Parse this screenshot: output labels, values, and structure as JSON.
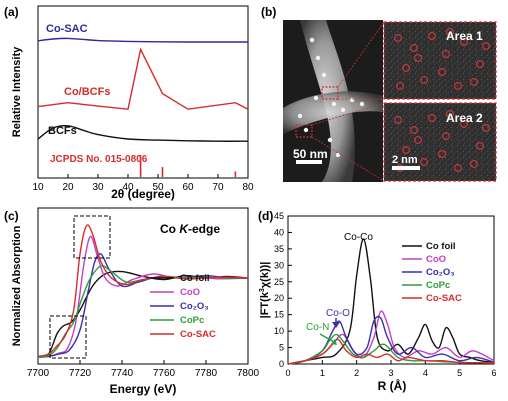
{
  "panel_a": {
    "label": "(a)",
    "ylabel": "Relative Intensity",
    "xlabel": "2θ (degree)",
    "xticks": [
      "10",
      "20",
      "30",
      "40",
      "50",
      "60",
      "70",
      "80"
    ],
    "traces": [
      {
        "name": "Co-SAC",
        "color": "#2b2b9a"
      },
      {
        "name": "Co/BCFs",
        "color": "#d62c2c"
      },
      {
        "name": "BCFs",
        "color": "#111111"
      }
    ],
    "reference": {
      "name": "JCPDS No. 015-0806",
      "color": "#d62c2c",
      "peaks": [
        44.2,
        51.5,
        75.8
      ],
      "heights": [
        1.0,
        0.45,
        0.25
      ]
    }
  },
  "panel_b": {
    "label": "(b)",
    "scalebar_main": "50 nm",
    "scalebar_inset": "2 nm",
    "area1": "Area 1",
    "area2": "Area 2"
  },
  "panel_c": {
    "label": "(c)",
    "title": "Co K-edge",
    "title_plain": "Co ",
    "title_italic": "K",
    "title_suffix": "-edge",
    "ylabel": "Normalized Absorption",
    "xlabel": "Energy (eV)",
    "xticks": [
      "7700",
      "7720",
      "7740",
      "7760",
      "7780",
      "7800"
    ],
    "legend": [
      {
        "name": "Co foil",
        "color": "#111111"
      },
      {
        "name": "CoO",
        "color": "#c43fc4"
      },
      {
        "name": "Co₂O₃",
        "color": "#3b2fa8"
      },
      {
        "name": "CoPc",
        "color": "#2e9e3a"
      },
      {
        "name": "Co-SAC",
        "color": "#d62c2c"
      }
    ]
  },
  "panel_d": {
    "label": "(d)",
    "ylabel": "|FT(k³χ(k))|",
    "xlabel": "R (Å)",
    "xticks": [
      "0",
      "1",
      "2",
      "3",
      "4",
      "5",
      "6"
    ],
    "yticks": [
      "0",
      "5",
      "10",
      "15",
      "20",
      "25",
      "30",
      "35",
      "40",
      "45"
    ],
    "annotations": {
      "co_co": "Co-Co",
      "co_o": "Co-O",
      "co_n": "Co-N"
    },
    "legend": [
      {
        "name": "Co foil",
        "color": "#111111"
      },
      {
        "name": "CoO",
        "color": "#c43fc4"
      },
      {
        "name": "Co₂O₃",
        "color": "#3b2fa8"
      },
      {
        "name": "CoPc",
        "color": "#2e9e3a"
      },
      {
        "name": "Co-SAC",
        "color": "#d62c2c"
      }
    ]
  },
  "chart_data": [
    {
      "type": "line",
      "title": "",
      "xlabel": "2θ (degree)",
      "ylabel": "Relative Intensity",
      "xlim": [
        10,
        80
      ],
      "series": [
        {
          "name": "Co-SAC",
          "x": [
            10,
            15,
            20,
            25,
            30,
            40,
            50,
            60,
            70,
            80
          ],
          "values": [
            0.6,
            0.75,
            0.8,
            0.72,
            0.62,
            0.55,
            0.52,
            0.5,
            0.5,
            0.5
          ]
        },
        {
          "name": "Co/BCFs",
          "x": [
            10,
            20,
            30,
            40,
            44.2,
            51.5,
            60,
            75.8,
            80
          ],
          "values": [
            0.4,
            0.55,
            0.42,
            0.3,
            2.6,
            0.9,
            0.3,
            0.55,
            0.3
          ]
        },
        {
          "name": "BCFs",
          "x": [
            10,
            15,
            20,
            25,
            30,
            40,
            50,
            60,
            70,
            80
          ],
          "values": [
            0.5,
            1.0,
            1.1,
            0.9,
            0.7,
            0.5,
            0.45,
            0.42,
            0.4,
            0.4
          ]
        }
      ],
      "reference_peaks": {
        "name": "JCPDS No. 015-0806",
        "x": [
          44.2,
          51.5,
          75.8
        ]
      }
    },
    {
      "type": "line",
      "title": "Co K-edge",
      "xlabel": "Energy (eV)",
      "ylabel": "Normalized Absorption",
      "xlim": [
        7700,
        7800
      ],
      "series": [
        {
          "name": "Co foil",
          "x": [
            7700,
            7705,
            7709,
            7712,
            7716,
            7720,
            7726,
            7732,
            7740,
            7750,
            7760,
            7770,
            7780,
            7790,
            7800
          ],
          "values": [
            0.02,
            0.05,
            0.3,
            0.4,
            0.45,
            0.6,
            0.9,
            1.05,
            1.08,
            1.02,
            0.98,
            1.03,
            1.0,
            1.02,
            1.0
          ]
        },
        {
          "name": "CoO",
          "x": [
            7700,
            7705,
            7710,
            7714,
            7718,
            7722,
            7725,
            7728,
            7732,
            7738,
            7745,
            7755,
            7765,
            7775,
            7785,
            7800
          ],
          "values": [
            0.01,
            0.02,
            0.06,
            0.12,
            0.45,
            1.2,
            1.52,
            1.3,
            1.0,
            0.9,
            0.98,
            1.05,
            1.0,
            1.02,
            0.99,
            1.0
          ]
        },
        {
          "name": "Co₂O₃",
          "x": [
            7700,
            7705,
            7710,
            7715,
            7720,
            7724,
            7727,
            7730,
            7734,
            7740,
            7748,
            7758,
            7768,
            7780,
            7790,
            7800
          ],
          "values": [
            0.01,
            0.02,
            0.05,
            0.1,
            0.35,
            0.85,
            1.2,
            1.3,
            1.1,
            0.9,
            0.95,
            1.02,
            1.0,
            1.03,
            1.0,
            1.0
          ]
        },
        {
          "name": "CoPc",
          "x": [
            7700,
            7705,
            7709,
            7713,
            7717,
            7721,
            7725,
            7730,
            7735,
            7742,
            7750,
            7760,
            7770,
            7780,
            7790,
            7800
          ],
          "values": [
            0.01,
            0.03,
            0.12,
            0.3,
            0.45,
            0.75,
            1.0,
            1.15,
            1.08,
            0.95,
            0.98,
            1.02,
            1.0,
            1.01,
            1.0,
            1.0
          ]
        },
        {
          "name": "Co-SAC",
          "x": [
            7700,
            7705,
            7709,
            7713,
            7717,
            7720,
            7723,
            7726,
            7730,
            7735,
            7742,
            7750,
            7760,
            7770,
            7780,
            7790,
            7800
          ],
          "values": [
            0.02,
            0.05,
            0.15,
            0.28,
            0.6,
            1.3,
            1.65,
            1.55,
            1.2,
            1.0,
            0.92,
            0.98,
            1.02,
            0.99,
            1.0,
            1.01,
            1.0
          ]
        }
      ]
    },
    {
      "type": "line",
      "title": "",
      "xlabel": "R (Å)",
      "ylabel": "|FT(k³χ(k))|",
      "xlim": [
        0,
        6
      ],
      "ylim": [
        0,
        45
      ],
      "series": [
        {
          "name": "Co foil",
          "x": [
            0,
            0.5,
            1.0,
            1.4,
            1.8,
            2.0,
            2.2,
            2.4,
            2.6,
            2.9,
            3.2,
            3.5,
            3.8,
            4.0,
            4.2,
            4.4,
            4.6,
            4.8,
            5.0,
            5.3,
            5.6,
            6.0
          ],
          "values": [
            0,
            1,
            2,
            3,
            10,
            27,
            38,
            26,
            8,
            4,
            6,
            3,
            8,
            12,
            7,
            5,
            11,
            8,
            3,
            2,
            1,
            0.5
          ]
        },
        {
          "name": "CoO",
          "x": [
            0,
            0.5,
            1.0,
            1.3,
            1.6,
            1.9,
            2.2,
            2.5,
            2.7,
            2.9,
            3.1,
            3.4,
            3.8,
            4.2,
            4.6,
            5.0,
            5.4,
            6.0
          ],
          "values": [
            0,
            1,
            3,
            6,
            9,
            4,
            2,
            8,
            16,
            12,
            5,
            2,
            4,
            3,
            5,
            2,
            4,
            1
          ]
        },
        {
          "name": "Co₂O₃",
          "x": [
            0,
            0.5,
            1.0,
            1.3,
            1.5,
            1.7,
            2.0,
            2.3,
            2.5,
            2.7,
            2.9,
            3.2,
            3.6,
            4.0,
            4.5,
            5.0,
            5.5,
            6.0
          ],
          "values": [
            0,
            1,
            4,
            10,
            13,
            8,
            3,
            5,
            13,
            14,
            8,
            3,
            5,
            2,
            3,
            1,
            2,
            0.5
          ]
        },
        {
          "name": "CoPc",
          "x": [
            0,
            0.5,
            1.0,
            1.2,
            1.4,
            1.6,
            1.9,
            2.2,
            2.5,
            2.8,
            3.2,
            3.6,
            4.0,
            5.0,
            6.0
          ],
          "values": [
            0,
            1,
            4,
            7,
            9,
            7,
            3,
            2,
            4,
            6,
            2,
            1,
            1,
            0.5,
            0.3
          ]
        },
        {
          "name": "Co-SAC",
          "x": [
            0,
            0.5,
            1.0,
            1.2,
            1.45,
            1.7,
            2.0,
            2.3,
            2.6,
            2.9,
            3.2,
            3.5,
            4.0,
            4.5,
            5.0,
            6.0
          ],
          "values": [
            0,
            1,
            3,
            5,
            7.5,
            4,
            2,
            3,
            2,
            3,
            1,
            2,
            1,
            1,
            0.5,
            0.3
          ]
        }
      ]
    }
  ]
}
